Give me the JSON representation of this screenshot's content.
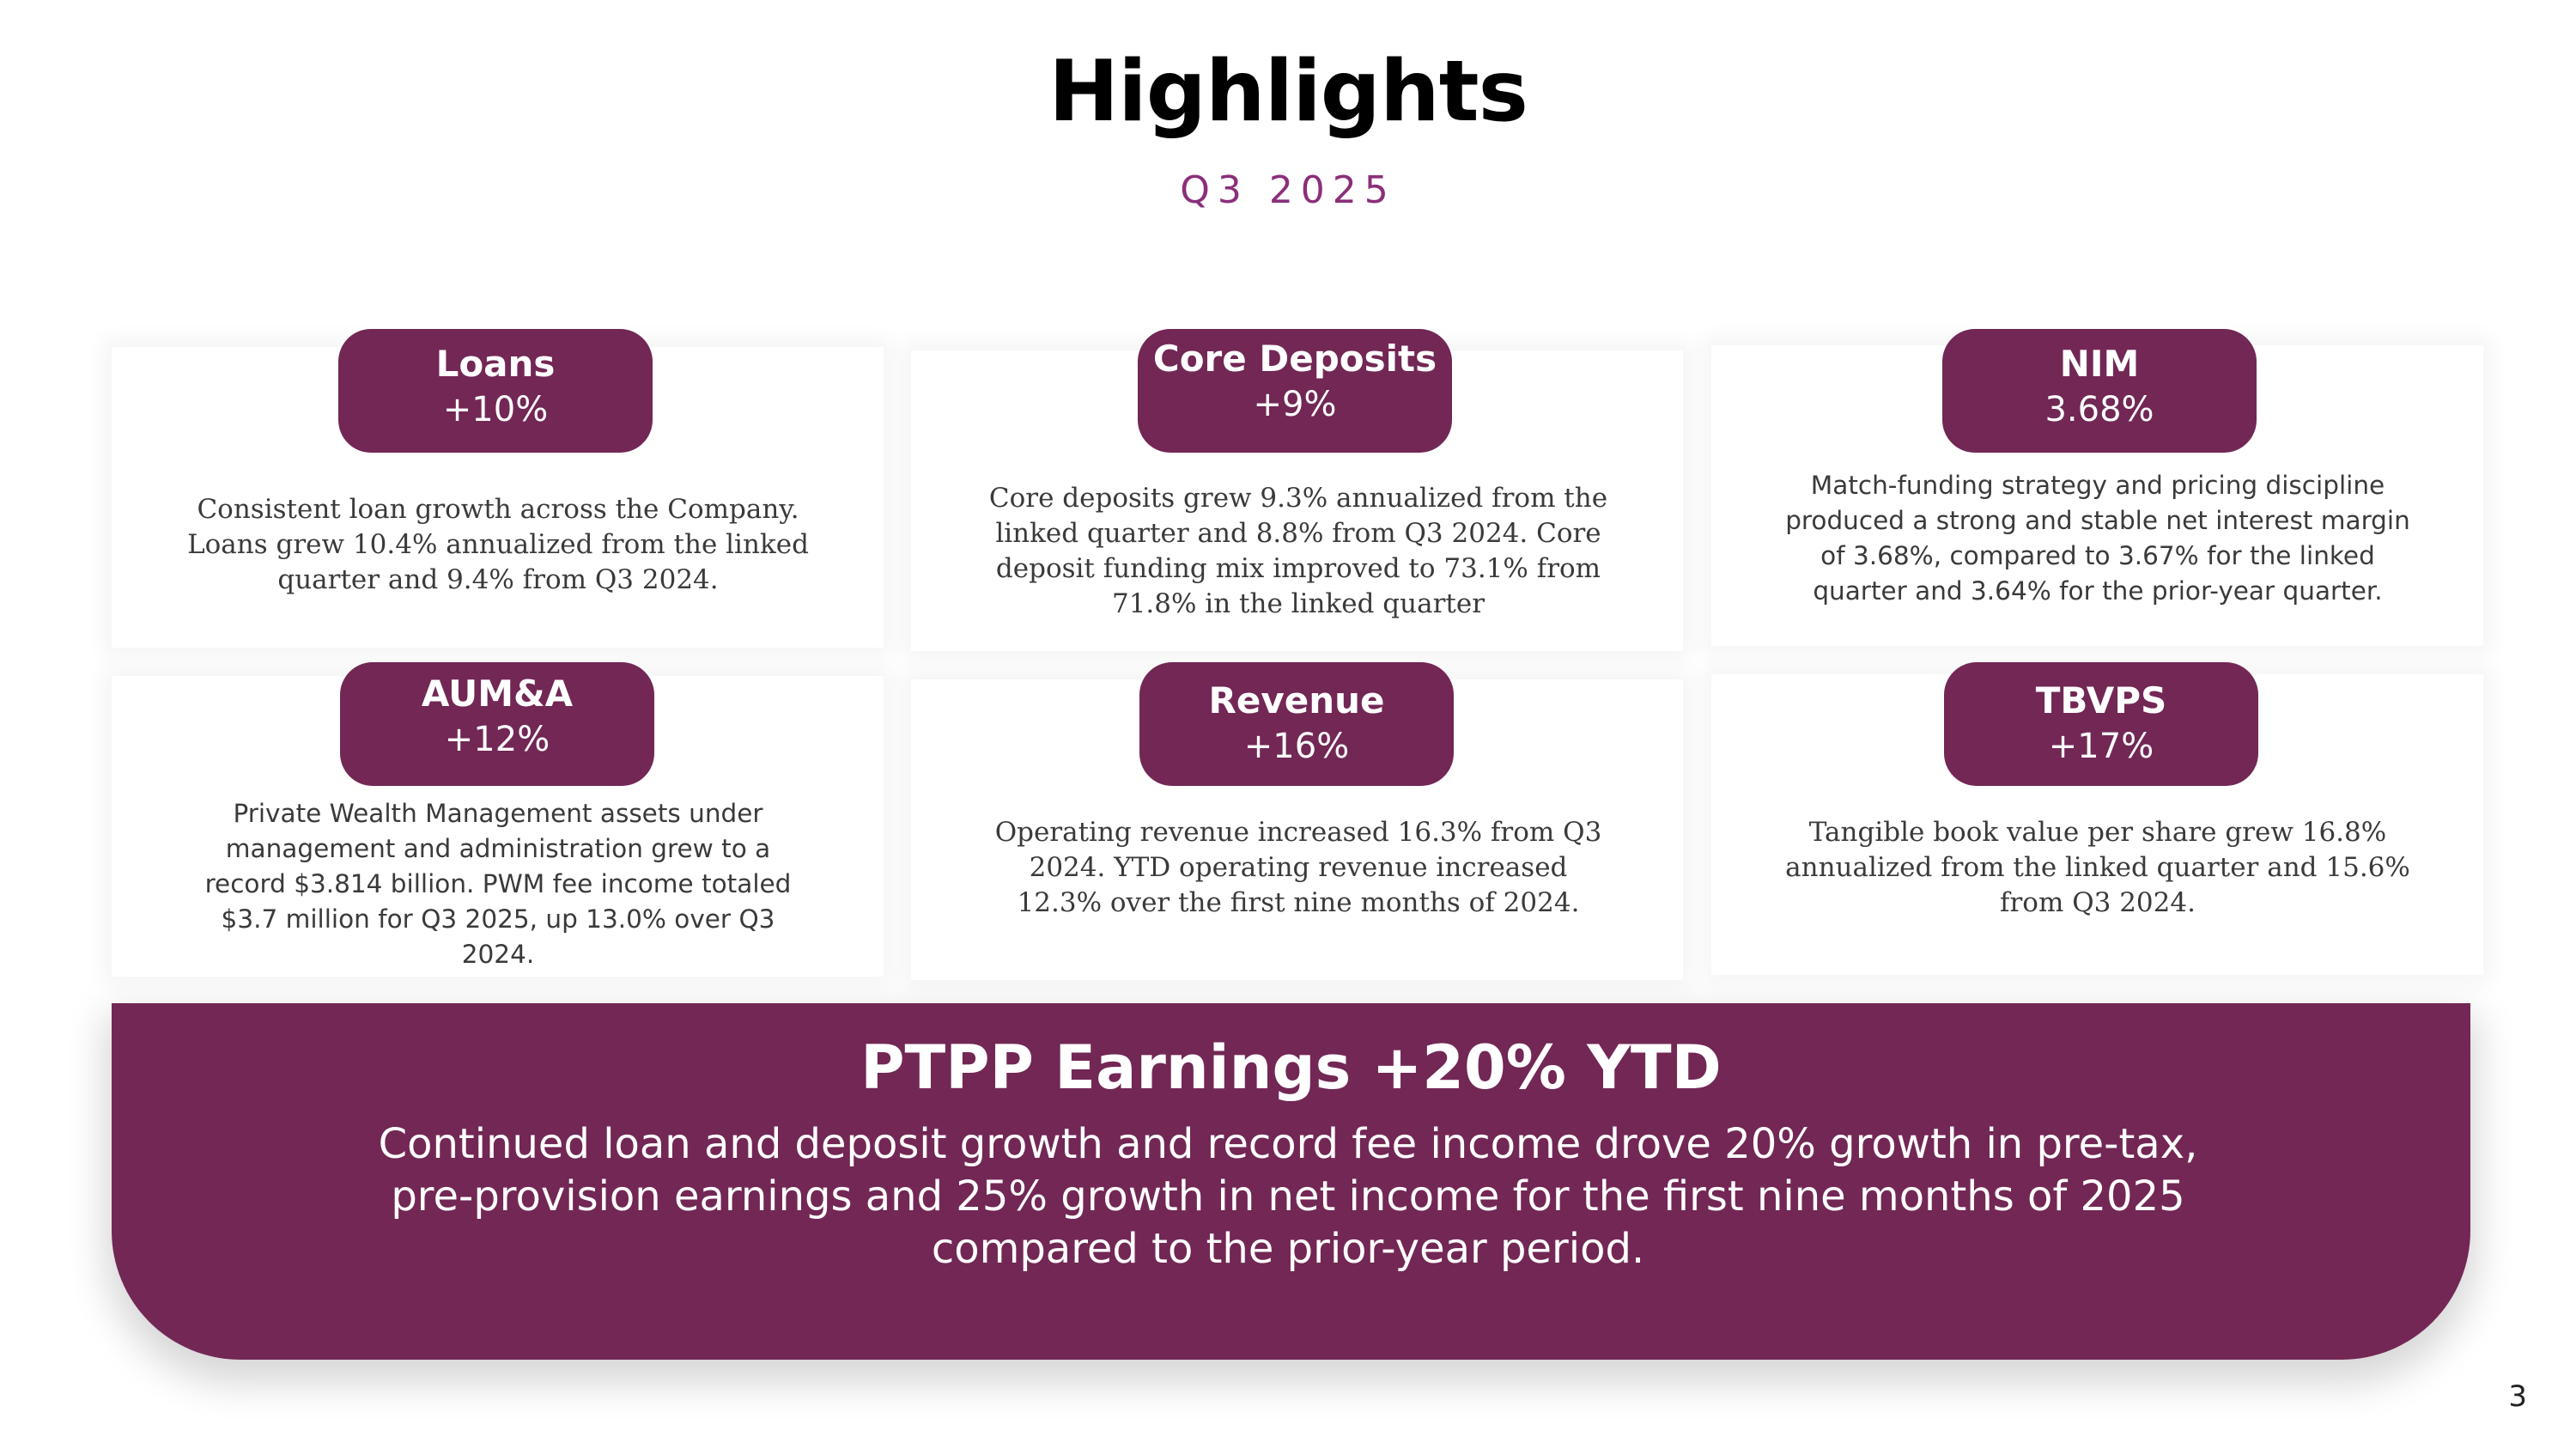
{
  "header": {
    "title": "Highlights",
    "subtitle": "Q3 2025"
  },
  "cards": [
    {
      "label": "Loans",
      "value": "+10%",
      "description": "Consistent loan growth across the Company. Loans grew 10.4% annualized from the linked quarter and 9.4% from Q3 2024."
    },
    {
      "label": "Core Deposits",
      "value": "+9%",
      "description": "Core deposits grew 9.3% annualized from the linked quarter and 8.8% from Q3 2024. Core deposit funding mix improved to 73.1% from 71.8% in the linked quarter"
    },
    {
      "label": "NIM",
      "value": "3.68%",
      "description": "Match-funding strategy and pricing discipline produced a strong and stable net interest margin of 3.68%, compared to 3.67% for the linked quarter and 3.64% for the prior-year quarter."
    },
    {
      "label": "AUM&A",
      "value": "+12%",
      "description": "Private Wealth Management assets under management and administration grew to a record $3.814 billion. PWM fee income totaled $3.7 million for Q3 2025, up 13.0% over Q3 2024."
    },
    {
      "label": "Revenue",
      "value": "+16%",
      "description": "Operating revenue increased 16.3% from Q3 2024. YTD operating revenue increased 12.3% over the first nine months of 2024."
    },
    {
      "label": "TBVPS",
      "value": "+17%",
      "description": "Tangible book value per share grew 16.8% annualized from the linked quarter and 15.6% from Q3 2024."
    }
  ],
  "banner": {
    "title": "PTPP Earnings +20% YTD",
    "text": "Continued loan and deposit growth and record fee income drove 20% growth in pre-tax, pre-provision earnings and 25% growth in net income for the first nine months of 2025 compared to the prior-year period."
  },
  "page_number": "3",
  "colors": {
    "accent": "#722755",
    "subtitle": "#8b2f7a"
  }
}
